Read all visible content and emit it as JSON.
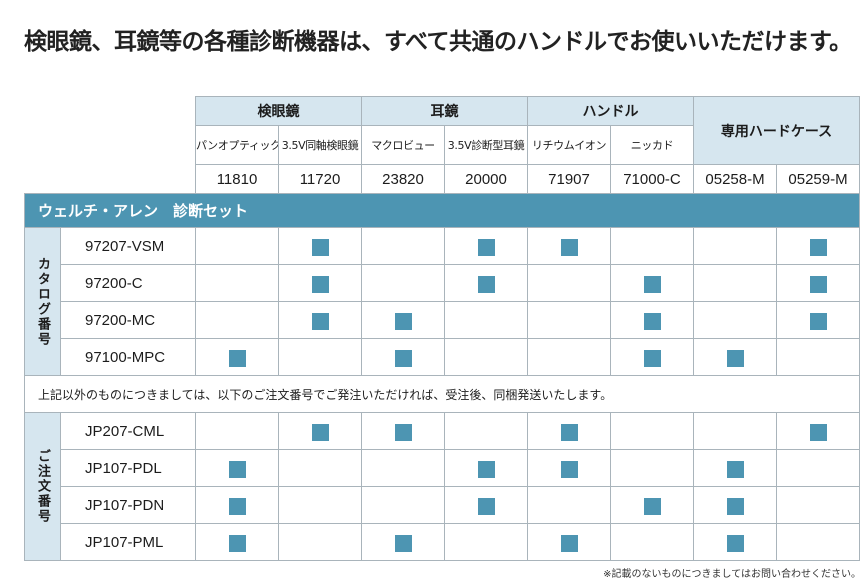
{
  "page": {
    "title": "検眼鏡、耳鏡等の各種診断機器は、すべて共通のハンドルでお使いいただけます。",
    "footnote": "※記載のないものにつきましてはお問い合わせください。"
  },
  "table": {
    "groups": {
      "ophthalmoscope": "検眼鏡",
      "otoscope": "耳鏡",
      "handle": "ハンドル",
      "hard_case": "専用ハードケース"
    },
    "subheaders": [
      "パンオプティック",
      "3.5V同軸検眼鏡",
      "マクロビュー",
      "3.5V診断型耳鏡",
      "リチウムイオン",
      "ニッカド"
    ],
    "columns": [
      "11810",
      "11720",
      "23820",
      "20000",
      "71907",
      "71000-C",
      "05258-M",
      "05259-M"
    ],
    "section_title": "ウェルチ・アレン　診断セット",
    "catalog_label": "カタログ番号",
    "catalog_rows": [
      {
        "code": "97207-VSM",
        "marks": [
          false,
          true,
          false,
          true,
          true,
          false,
          false,
          true
        ]
      },
      {
        "code": "97200-C",
        "marks": [
          false,
          true,
          false,
          true,
          false,
          true,
          false,
          true
        ]
      },
      {
        "code": "97200-MC",
        "marks": [
          false,
          true,
          true,
          false,
          false,
          true,
          false,
          true
        ]
      },
      {
        "code": "97100-MPC",
        "marks": [
          true,
          false,
          true,
          false,
          false,
          true,
          true,
          false
        ]
      }
    ],
    "note": "上記以外のものにつきましては、以下のご注文番号でご発注いただければ、受注後、同梱発送いたします。",
    "order_label": "ご注文番号",
    "order_rows": [
      {
        "code": "JP207-CML",
        "marks": [
          false,
          true,
          true,
          false,
          true,
          false,
          false,
          true
        ]
      },
      {
        "code": "JP107-PDL",
        "marks": [
          true,
          false,
          false,
          true,
          true,
          false,
          true,
          false
        ]
      },
      {
        "code": "JP107-PDN",
        "marks": [
          true,
          false,
          false,
          true,
          false,
          true,
          true,
          false
        ]
      },
      {
        "code": "JP107-PML",
        "marks": [
          true,
          false,
          true,
          false,
          true,
          false,
          true,
          false
        ]
      }
    ],
    "mark_color": "#4d95b2",
    "header_bg": "#d6e6ef"
  }
}
